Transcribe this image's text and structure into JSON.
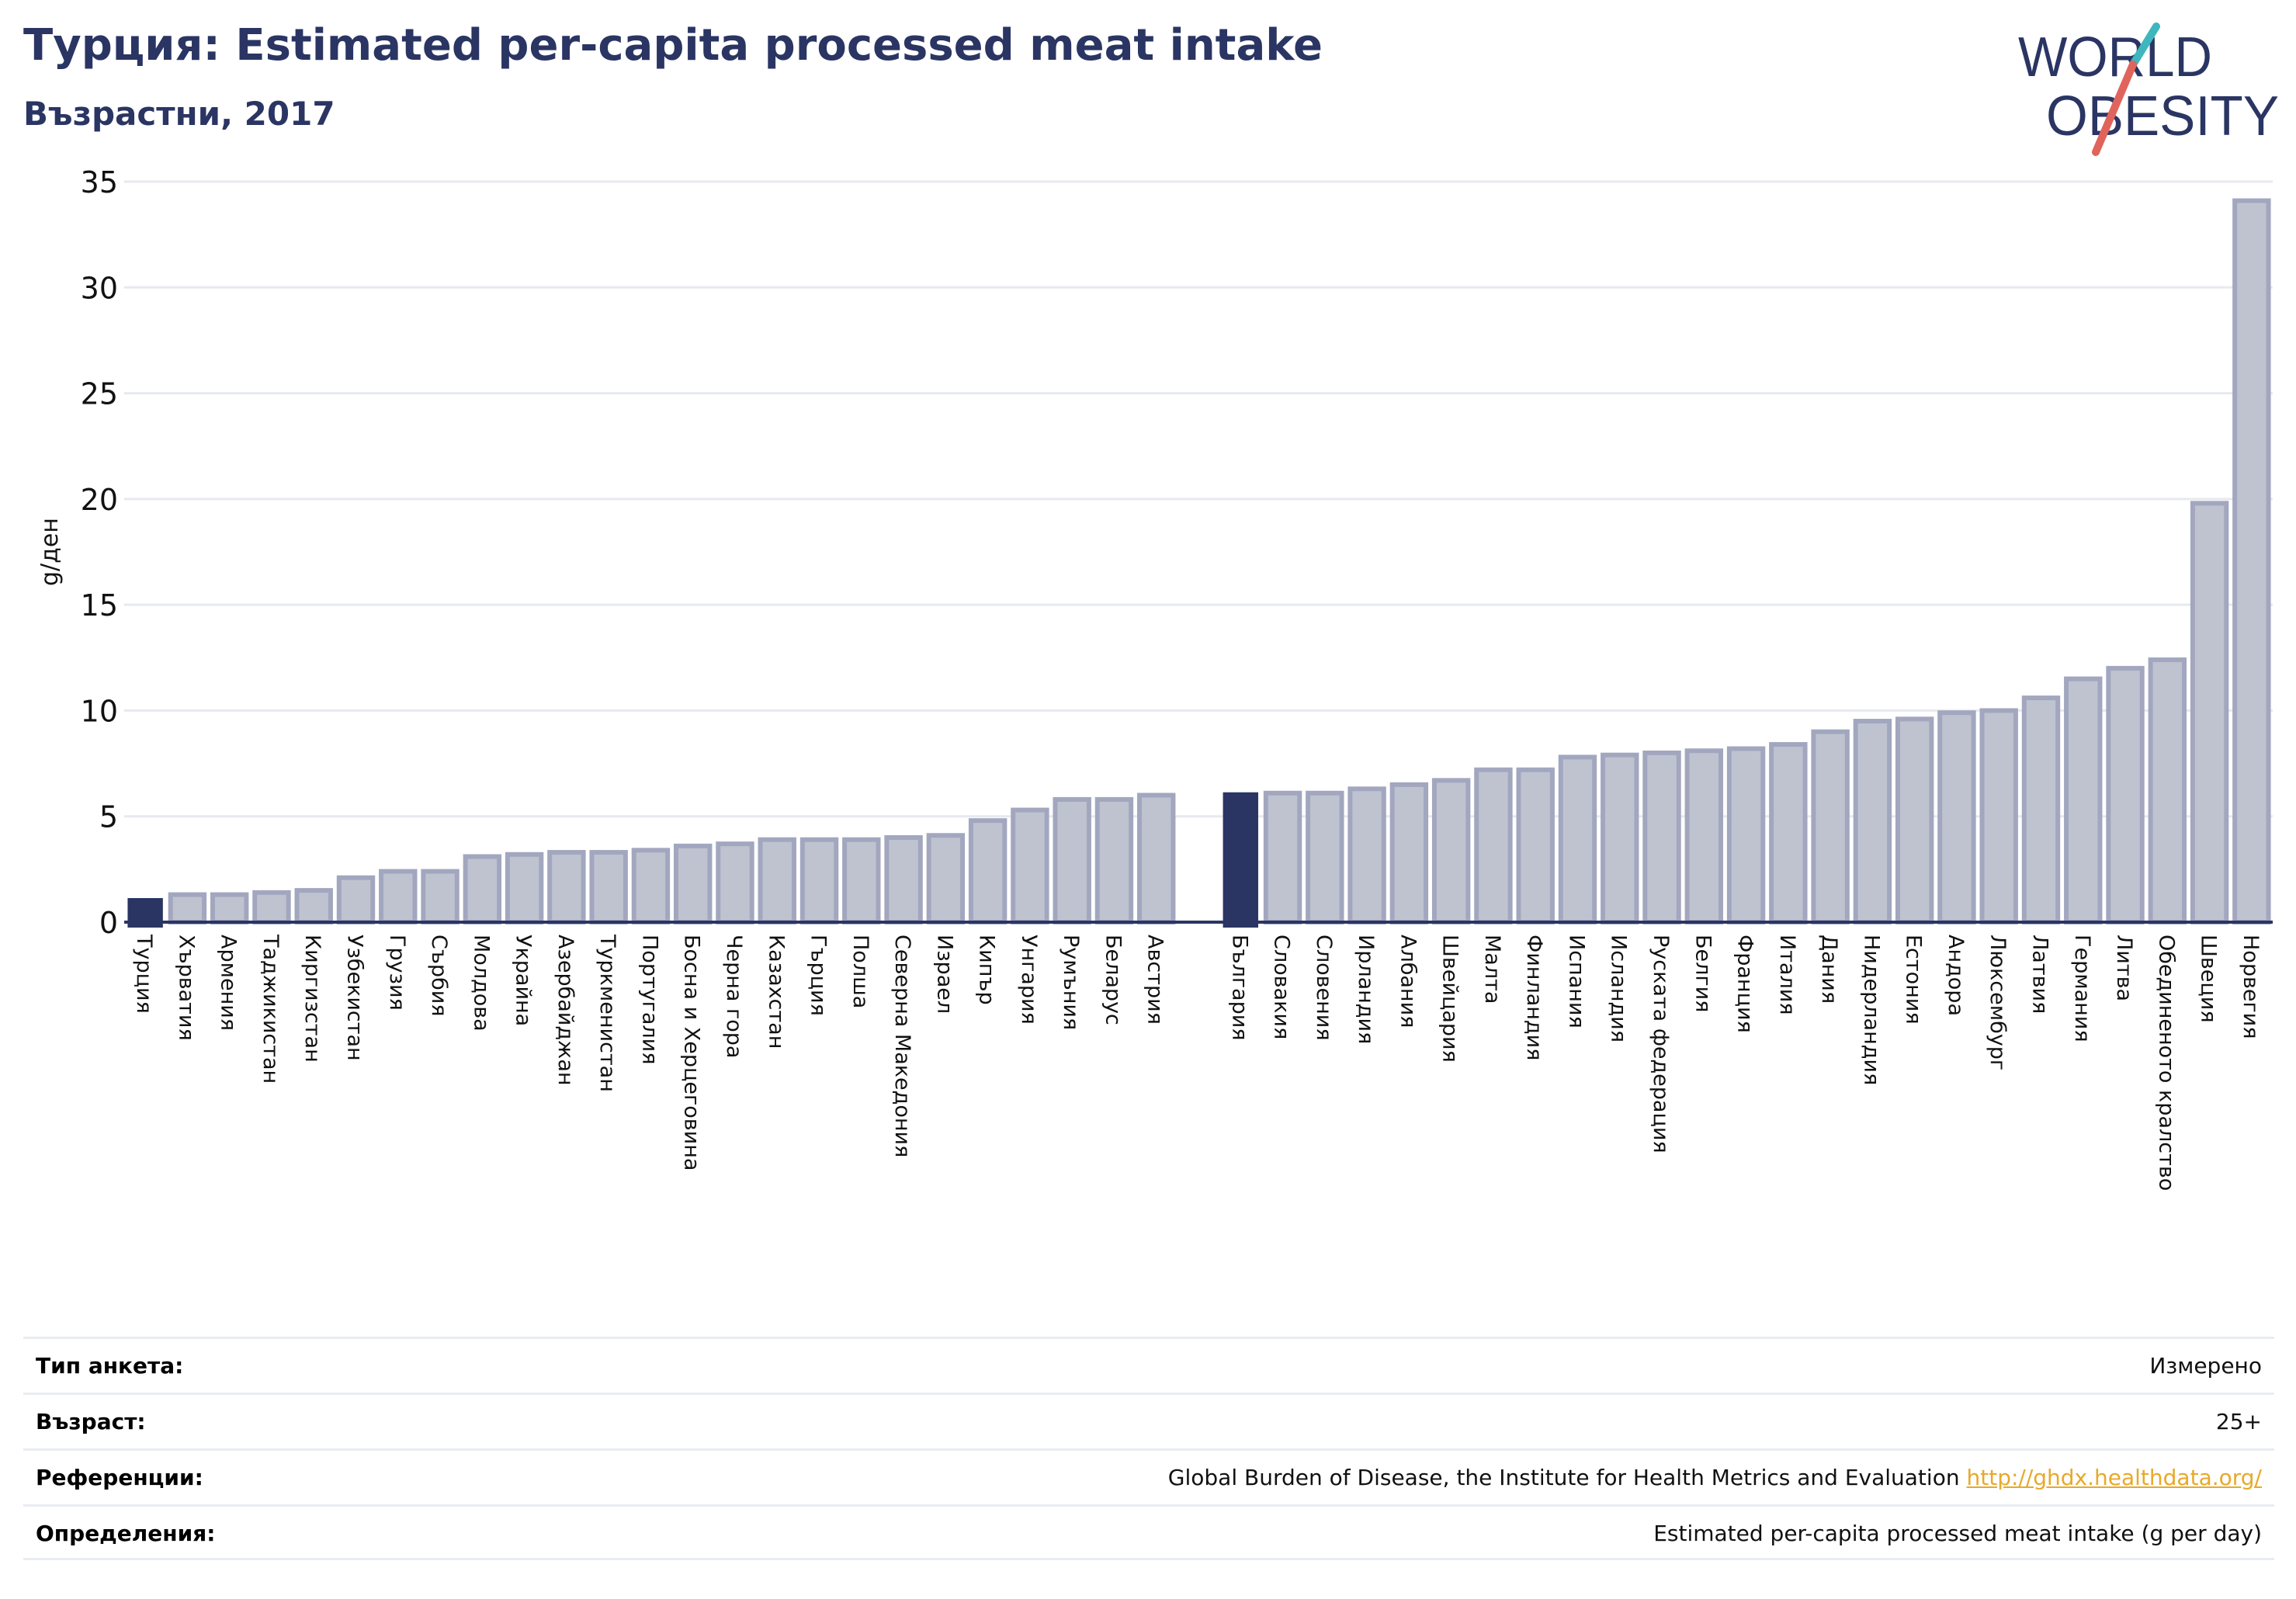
{
  "header": {
    "title": "Турция: Estimated per-capita processed meat intake",
    "subtitle": "Възрастни, 2017"
  },
  "logo": {
    "line1": "WORLD",
    "line2": "OBESITY"
  },
  "colors": {
    "highlight": "#2a3563",
    "bar_fill": "#bfc3d0",
    "bar_stroke": "#a2a7bf",
    "grid": "#e6e9ef",
    "text_dark": "#2a3563",
    "link": "#e8a92a",
    "logo_teal": "#3db7bd",
    "logo_coral": "#e0645c"
  },
  "chart_data": {
    "type": "bar",
    "ylabel": "g/ден",
    "ylim": [
      0,
      35
    ],
    "yticks": [
      0,
      5,
      10,
      15,
      20,
      25,
      30,
      35
    ],
    "grid": true,
    "highlighted": [
      "Турция",
      "България"
    ],
    "categories": [
      "Турция",
      "Хърватия",
      "Армения",
      "Таджикистан",
      "Киргизстан",
      "Узбекистан",
      "Грузия",
      "Сърбия",
      "Молдова",
      "Украйна",
      "Азербайджан",
      "Туркменистан",
      "Португалия",
      "Босна и Херцеговина",
      "Черна гора",
      "Казахстан",
      "Гърция",
      "Полша",
      "Северна Македония",
      "Израел",
      "Кипър",
      "Унгария",
      "Румъния",
      "Беларус",
      "Австрия",
      "",
      "България",
      "Словакия",
      "Словения",
      "Ирландия",
      "Албания",
      "Швейцария",
      "Малта",
      "Финландия",
      "Испания",
      "Исландия",
      "Руската федерация",
      "Белгия",
      "Франция",
      "Италия",
      "Дания",
      "Нидерландия",
      "Естония",
      "Андора",
      "Люксембург",
      "Латвия",
      "Германия",
      "Литва",
      "Обединеното кралство",
      "Швеция",
      "Норвегия"
    ],
    "values": [
      1.1,
      1.3,
      1.3,
      1.4,
      1.5,
      2.1,
      2.4,
      2.4,
      3.1,
      3.2,
      3.3,
      3.3,
      3.4,
      3.6,
      3.7,
      3.9,
      3.9,
      3.9,
      4.0,
      4.1,
      4.8,
      5.3,
      5.8,
      5.8,
      6.0,
      null,
      6.1,
      6.1,
      6.1,
      6.3,
      6.5,
      6.7,
      7.2,
      7.2,
      7.8,
      7.9,
      8.0,
      8.1,
      8.2,
      8.4,
      9.0,
      9.5,
      9.6,
      9.9,
      10.0,
      10.6,
      11.5,
      12.0,
      12.4,
      19.8,
      34.1
    ]
  },
  "info": [
    {
      "label": "Тип анкета:",
      "value": "Измерено"
    },
    {
      "label": "Възраст:",
      "value": "25+"
    },
    {
      "label": "Референции:",
      "value": "Global Burden of Disease, the Institute for Health Metrics and Evaluation",
      "link": "http://ghdx.healthdata.org/"
    },
    {
      "label": "Определения:",
      "value": "Estimated per-capita processed meat intake (g per day)"
    }
  ]
}
